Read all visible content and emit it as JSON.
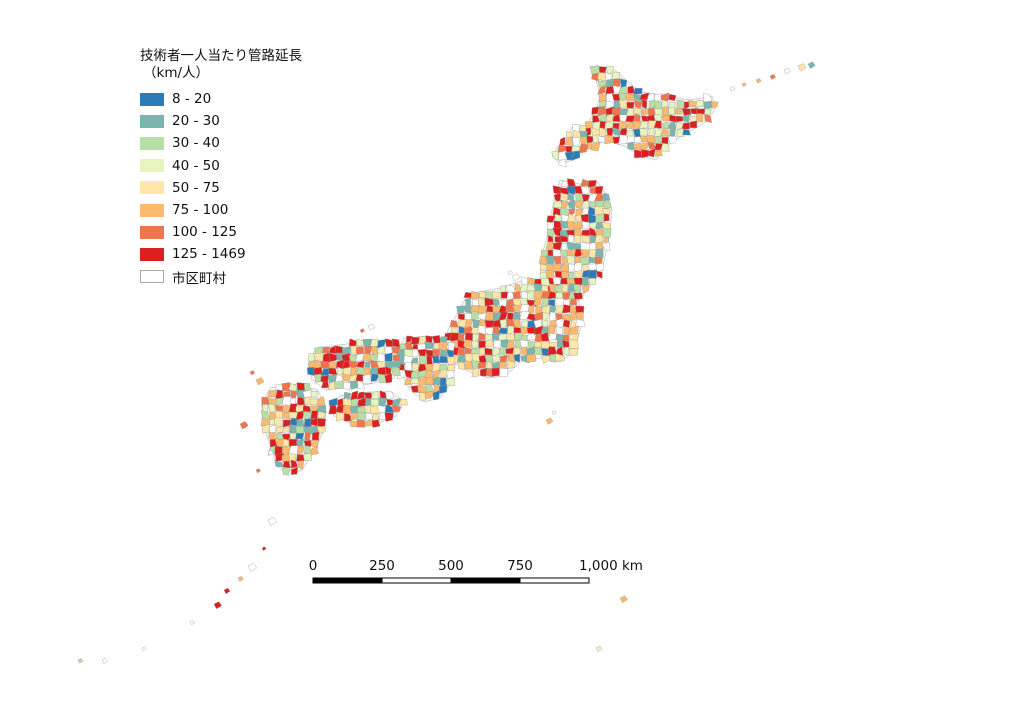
{
  "legend": {
    "title_line1": "技術者一人当たり管路延長",
    "title_line2": "（km/人）",
    "items": [
      {
        "label": "8 - 20",
        "color": "#2c7bb6"
      },
      {
        "label": "20 - 30",
        "color": "#7ab6ad"
      },
      {
        "label": "30 - 40",
        "color": "#b8e0a6"
      },
      {
        "label": "40 - 50",
        "color": "#e6f5c0"
      },
      {
        "label": "50 - 75",
        "color": "#fee7a6"
      },
      {
        "label": "75 - 100",
        "color": "#fdb96e"
      },
      {
        "label": "100 - 125",
        "color": "#f1754c"
      },
      {
        "label": "125 - 1469",
        "color": "#dc2020"
      },
      {
        "label": "市区町村",
        "color": "#ffffff"
      }
    ]
  },
  "scalebar": {
    "labels": [
      "0",
      "250",
      "500",
      "750",
      "1,000 km"
    ]
  },
  "icons": {
    "map": "japan-choropleth-map",
    "scale": "scale-bar-icon"
  }
}
